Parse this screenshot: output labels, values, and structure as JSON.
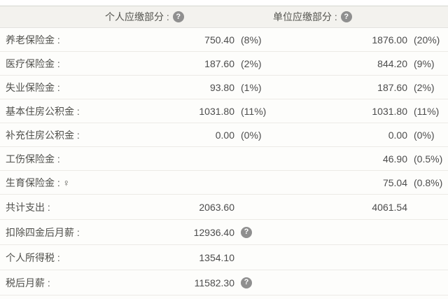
{
  "header": {
    "personal_label": "个人应缴部分 :",
    "company_label": "单位应缴部分 :",
    "help_icon_glyph": "?"
  },
  "colors": {
    "header_background": "#f3f2ee",
    "row_background": "#fdfdfb",
    "help_icon_background": "#8f8f8f",
    "text": "#4f4f4f"
  },
  "rows": [
    {
      "label": "养老保险金 :",
      "personal": "750.40",
      "personal_pct": "(8%)",
      "company": "1876.00",
      "company_pct": "(20%)",
      "personal_help": false,
      "tall": false
    },
    {
      "label": "医疗保险金 :",
      "personal": "187.60",
      "personal_pct": "(2%)",
      "company": "844.20",
      "company_pct": "(9%)",
      "personal_help": false,
      "tall": false
    },
    {
      "label": "失业保险金 :",
      "personal": "93.80",
      "personal_pct": "(1%)",
      "company": "187.60",
      "company_pct": "(2%)",
      "personal_help": false,
      "tall": false
    },
    {
      "label": "基本住房公积金 :",
      "personal": "1031.80",
      "personal_pct": "(11%)",
      "company": "1031.80",
      "company_pct": "(11%)",
      "personal_help": false,
      "tall": false
    },
    {
      "label": "补充住房公积金 :",
      "personal": "0.00",
      "personal_pct": "(0%)",
      "company": "0.00",
      "company_pct": "(0%)",
      "personal_help": false,
      "tall": false
    },
    {
      "label": "工伤保险金 :",
      "personal": "",
      "personal_pct": "",
      "company": "46.90",
      "company_pct": "(0.5%)",
      "personal_help": false,
      "tall": false
    },
    {
      "label": "生育保险金 : ♀",
      "personal": "",
      "personal_pct": "",
      "company": "75.04",
      "company_pct": "(0.8%)",
      "personal_help": false,
      "tall": false
    },
    {
      "label": "共计支出 :",
      "personal": "2063.60",
      "personal_pct": "",
      "company": "4061.54",
      "company_pct": "",
      "personal_help": false,
      "tall": true
    },
    {
      "label": "扣除四金后月薪 :",
      "personal": "12936.40",
      "personal_pct": "",
      "company": "",
      "company_pct": "",
      "personal_help": true,
      "tall": true
    },
    {
      "label": "个人所得税 :",
      "personal": "1354.10",
      "personal_pct": "",
      "company": "",
      "company_pct": "",
      "personal_help": false,
      "tall": true
    },
    {
      "label": "税后月薪 :",
      "personal": "11582.30",
      "personal_pct": "",
      "company": "",
      "company_pct": "",
      "personal_help": true,
      "tall": true
    }
  ]
}
